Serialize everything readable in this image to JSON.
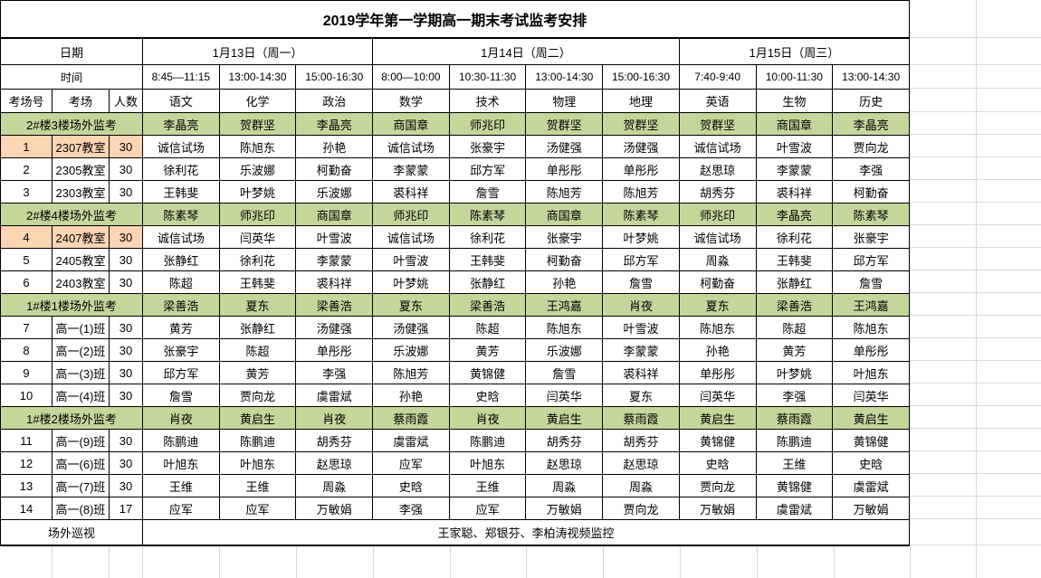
{
  "title": "2019学年第一学期高一期末考试监考安排",
  "colors": {
    "section_row_bg": "#c4d79b",
    "highlight_bg": "#fcd5b4",
    "table_border": "#000000",
    "gridline": "#d9d9d9",
    "page_bg": "#ffffff"
  },
  "header": {
    "date_label": "日期",
    "time_label": "时间",
    "room_no_label": "考场号",
    "room_label": "考场",
    "count_label": "人数",
    "dates": [
      {
        "label": "1月13日（周一）",
        "span": 3
      },
      {
        "label": "1月14日（周二）",
        "span": 4
      },
      {
        "label": "1月15日（周三）",
        "span": 3
      }
    ],
    "times": [
      "8:45—11:15",
      "13:00-14:30",
      "15:00-16:30",
      "8:00—10:00",
      "10:30-11:30",
      "13:00-14:30",
      "15:00-16:30",
      "7:40-9:40",
      "10:00-11:30",
      "13:00-14:30"
    ],
    "subjects": [
      "语文",
      "化学",
      "政治",
      "数学",
      "技术",
      "物理",
      "地理",
      "英语",
      "生物",
      "历史"
    ]
  },
  "sections": [
    {
      "name": "2#楼3楼场外监考",
      "supervisors": [
        "李晶亮",
        "贺群坚",
        "李晶亮",
        "商国章",
        "师兆印",
        "贺群坚",
        "贺群坚",
        "贺群坚",
        "商国章",
        "李晶亮"
      ],
      "rows": [
        {
          "no": "1",
          "room": "2307教室",
          "count": "30",
          "highlight": true,
          "cells": [
            "诚信试场",
            "陈旭东",
            "孙艳",
            "诚信试场",
            "张豪宇",
            "汤健强",
            "汤健强",
            "诚信试场",
            "叶雪波",
            "贾向龙"
          ]
        },
        {
          "no": "2",
          "room": "2305教室",
          "count": "30",
          "highlight": false,
          "cells": [
            "徐利花",
            "乐波娜",
            "柯勤奋",
            "李蒙蒙",
            "邱方军",
            "单彤彤",
            "单彤彤",
            "赵思琼",
            "李蒙蒙",
            "李强"
          ]
        },
        {
          "no": "3",
          "room": "2303教室",
          "count": "30",
          "highlight": false,
          "cells": [
            "王韩斐",
            "叶梦姚",
            "乐波娜",
            "裘科祥",
            "詹雪",
            "陈旭芳",
            "陈旭芳",
            "胡秀芬",
            "裘科祥",
            "柯勤奋"
          ]
        }
      ]
    },
    {
      "name": "2#楼4楼场外监考",
      "supervisors": [
        "陈素琴",
        "师兆印",
        "商国章",
        "师兆印",
        "陈素琴",
        "商国章",
        "陈素琴",
        "师兆印",
        "李晶亮",
        "陈素琴"
      ],
      "rows": [
        {
          "no": "4",
          "room": "2407教室",
          "count": "30",
          "highlight": true,
          "cells": [
            "诚信试场",
            "闫英华",
            "叶雪波",
            "诚信试场",
            "徐利花",
            "张豪宇",
            "叶梦姚",
            "诚信试场",
            "徐利花",
            "张豪宇"
          ]
        },
        {
          "no": "5",
          "room": "2405教室",
          "count": "30",
          "highlight": false,
          "cells": [
            "张静红",
            "徐利花",
            "李蒙蒙",
            "叶雪波",
            "王韩斐",
            "柯勤奋",
            "邱方军",
            "周淼",
            "王韩斐",
            "邱方军"
          ]
        },
        {
          "no": "6",
          "room": "2403教室",
          "count": "30",
          "highlight": false,
          "cells": [
            "陈超",
            "王韩斐",
            "裘科祥",
            "叶梦姚",
            "张静红",
            "孙艳",
            "詹雪",
            "柯勤奋",
            "张静红",
            "詹雪"
          ]
        }
      ]
    },
    {
      "name": "1#楼1楼场外监考",
      "supervisors": [
        "梁善浩",
        "夏东",
        "梁善浩",
        "夏东",
        "梁善浩",
        "王鸿嘉",
        "肖夜",
        "夏东",
        "梁善浩",
        "王鸿嘉"
      ],
      "rows": [
        {
          "no": "7",
          "room": "高一(1)班",
          "count": "30",
          "highlight": false,
          "cells": [
            "黄芳",
            "张静红",
            "汤健强",
            "汤健强",
            "陈超",
            "陈旭东",
            "叶雪波",
            "陈旭东",
            "陈超",
            "陈旭东"
          ]
        },
        {
          "no": "8",
          "room": "高一(2)班",
          "count": "30",
          "highlight": false,
          "cells": [
            "张豪宇",
            "陈超",
            "单彤彤",
            "乐波娜",
            "黄芳",
            "乐波娜",
            "李蒙蒙",
            "孙艳",
            "黄芳",
            "单彤彤"
          ]
        },
        {
          "no": "9",
          "room": "高一(3)班",
          "count": "30",
          "highlight": false,
          "cells": [
            "邱方军",
            "黄芳",
            "李强",
            "陈旭芳",
            "黄锦健",
            "詹雪",
            "裘科祥",
            "单彤彤",
            "叶梦姚",
            "叶旭东"
          ]
        },
        {
          "no": "10",
          "room": "高一(4)班",
          "count": "30",
          "highlight": false,
          "cells": [
            "詹雪",
            "贾向龙",
            "虞雷斌",
            "孙艳",
            "史晗",
            "闫英华",
            "夏东",
            "闫英华",
            "李强",
            "闫英华"
          ]
        }
      ]
    },
    {
      "name": "1#楼2楼场外监考",
      "supervisors": [
        "肖夜",
        "黄启生",
        "肖夜",
        "蔡雨霞",
        "肖夜",
        "黄启生",
        "蔡雨霞",
        "黄启生",
        "蔡雨霞",
        "黄启生"
      ],
      "rows": [
        {
          "no": "11",
          "room": "高一(9)班",
          "count": "30",
          "highlight": false,
          "cells": [
            "陈鹏迪",
            "陈鹏迪",
            "胡秀芬",
            "虞雷斌",
            "陈鹏迪",
            "胡秀芬",
            "胡秀芬",
            "黄锦健",
            "陈鹏迪",
            "黄锦健"
          ]
        },
        {
          "no": "12",
          "room": "高一(6)班",
          "count": "30",
          "highlight": false,
          "cells": [
            "叶旭东",
            "叶旭东",
            "赵思琼",
            "应军",
            "叶旭东",
            "赵思琼",
            "赵思琼",
            "史晗",
            "王维",
            "史晗"
          ]
        },
        {
          "no": "13",
          "room": "高一(7)班",
          "count": "30",
          "highlight": false,
          "cells": [
            "王维",
            "王维",
            "周淼",
            "史晗",
            "王维",
            "周淼",
            "周淼",
            "贾向龙",
            "黄锦健",
            "虞雷斌"
          ]
        },
        {
          "no": "14",
          "room": "高一(8)班",
          "count": "17",
          "highlight": false,
          "cells": [
            "应军",
            "应军",
            "万敏娟",
            "李强",
            "应军",
            "万敏娟",
            "贾向龙",
            "万敏娟",
            "虞雷斌",
            "万敏娟"
          ]
        }
      ]
    }
  ],
  "footer": {
    "label": "场外巡视",
    "value": "王家聪、郑银芬、李柏涛视频监控"
  }
}
